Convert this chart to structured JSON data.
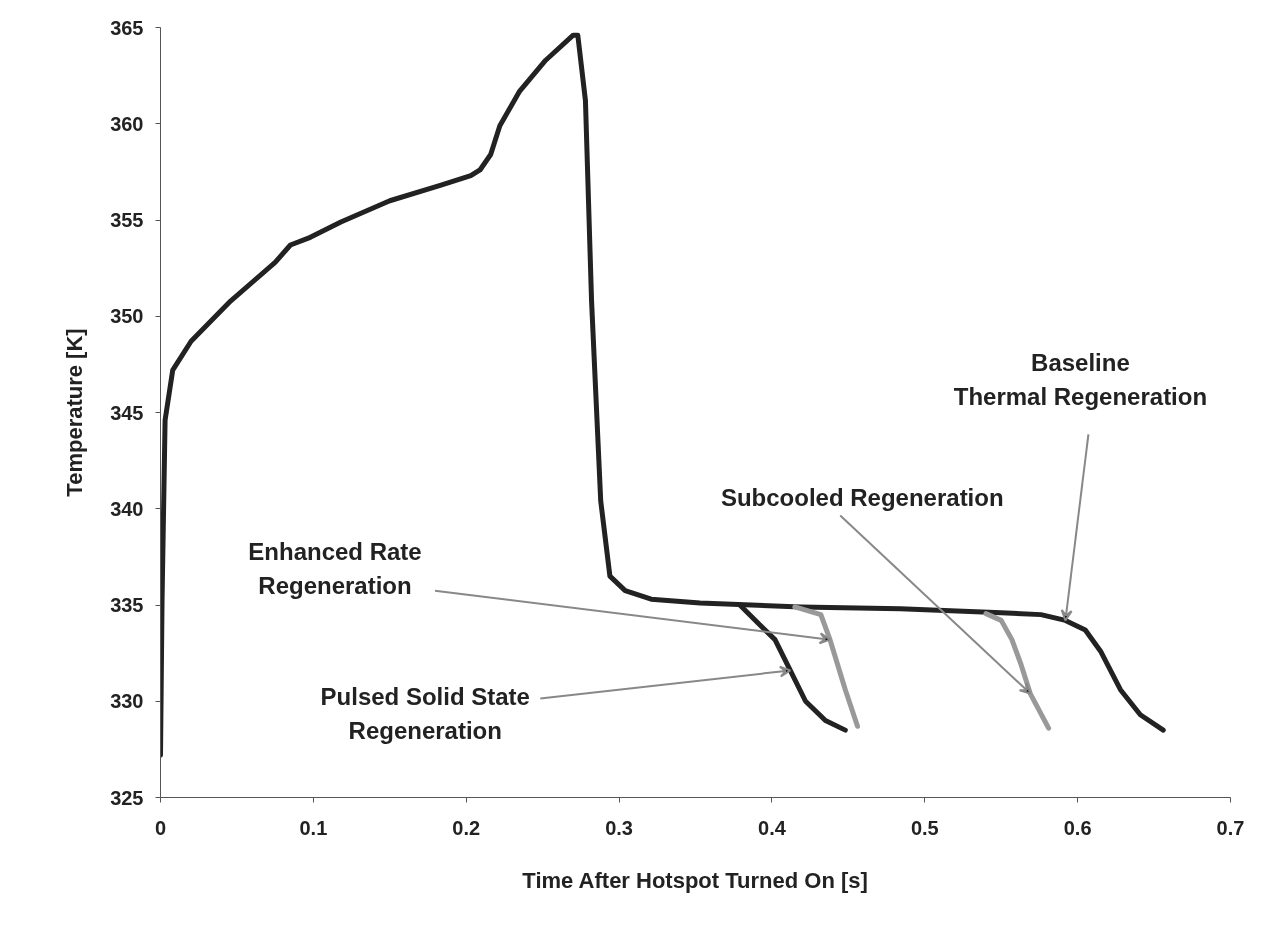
{
  "chart_data": {
    "type": "line",
    "xlabel": "Time After Hotspot Turned On [s]",
    "ylabel": "Temperature [K]",
    "xlim": [
      0,
      0.7
    ],
    "ylim": [
      325,
      365
    ],
    "xticks": [
      0,
      0.1,
      0.2,
      0.3,
      0.4,
      0.5,
      0.6,
      0.7
    ],
    "yticks": [
      325,
      330,
      335,
      340,
      345,
      350,
      355,
      360,
      365
    ],
    "grid": false,
    "marker": "none",
    "line_style": "solid",
    "series": [
      {
        "color": "#222222",
        "x": [
          0,
          0.001,
          0.003,
          0.008,
          0.02,
          0.046,
          0.075,
          0.085,
          0.098,
          0.118,
          0.15,
          0.183,
          0.203,
          0.209,
          0.216,
          0.222,
          0.235,
          0.252,
          0.27,
          0.273,
          0.278,
          0.282,
          0.288,
          0.294,
          0.304,
          0.321,
          0.353,
          0.419,
          0.484,
          0.55,
          0.576,
          0.592,
          0.605,
          0.615,
          0.628,
          0.641,
          0.656
        ],
        "values": [
          327.2,
          335.2,
          344.6,
          347.2,
          348.7,
          350.8,
          352.8,
          353.7,
          354.1,
          354.9,
          356.0,
          356.8,
          357.3,
          357.6,
          358.4,
          359.9,
          361.7,
          363.3,
          364.6,
          364.6,
          361.2,
          350.8,
          340.4,
          336.5,
          335.75,
          335.3,
          335.1,
          334.9,
          334.8,
          334.6,
          334.5,
          334.2,
          333.7,
          332.6,
          330.6,
          329.3,
          328.5
        ]
      },
      {
        "color": "#222222",
        "x": [
          0.379,
          0.393,
          0.402,
          0.412,
          0.422,
          0.435,
          0.448
        ],
        "values": [
          335.0,
          333.9,
          333.2,
          331.6,
          330.0,
          329.0,
          328.5
        ]
      },
      {
        "color": "#999999",
        "x": [
          0.415,
          0.432,
          0.438,
          0.448,
          0.456
        ],
        "values": [
          334.9,
          334.5,
          333.2,
          330.6,
          328.7
        ]
      },
      {
        "color": "#999999",
        "x": [
          0.54,
          0.55,
          0.557,
          0.563,
          0.569,
          0.581
        ],
        "values": [
          334.55,
          334.2,
          333.2,
          331.9,
          330.4,
          328.6
        ]
      }
    ],
    "annotations": [
      {
        "text": "Baseline\nThermal Regeneration",
        "x": 0.592,
        "y": 334.2
      },
      {
        "text": "Subcooled Regeneration",
        "x": 0.569,
        "y": 330.4
      },
      {
        "text": "Enhanced Rate\nRegeneration",
        "x": 0.438,
        "y": 333.2
      },
      {
        "text": "Pulsed Solid State\nRegeneration",
        "x": 0.412,
        "y": 331.6
      }
    ]
  }
}
